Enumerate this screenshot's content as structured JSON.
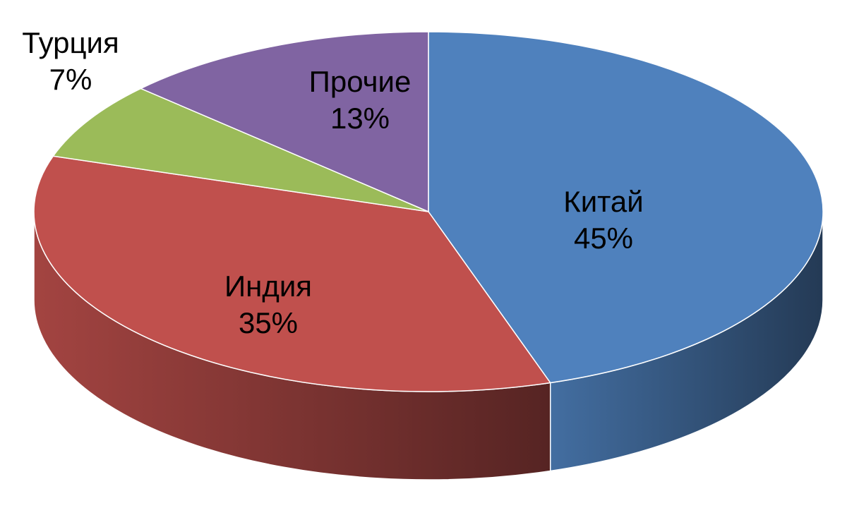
{
  "chart_data": {
    "type": "pie",
    "categories": [
      "Китай",
      "Индия",
      "Турция",
      "Прочие"
    ],
    "values": [
      45,
      35,
      7,
      13
    ],
    "value_labels": [
      "45%",
      "35%",
      "7%",
      "13%"
    ],
    "colors": [
      "#4f81bd",
      "#c0504d",
      "#9bbb59",
      "#8064a2"
    ]
  }
}
